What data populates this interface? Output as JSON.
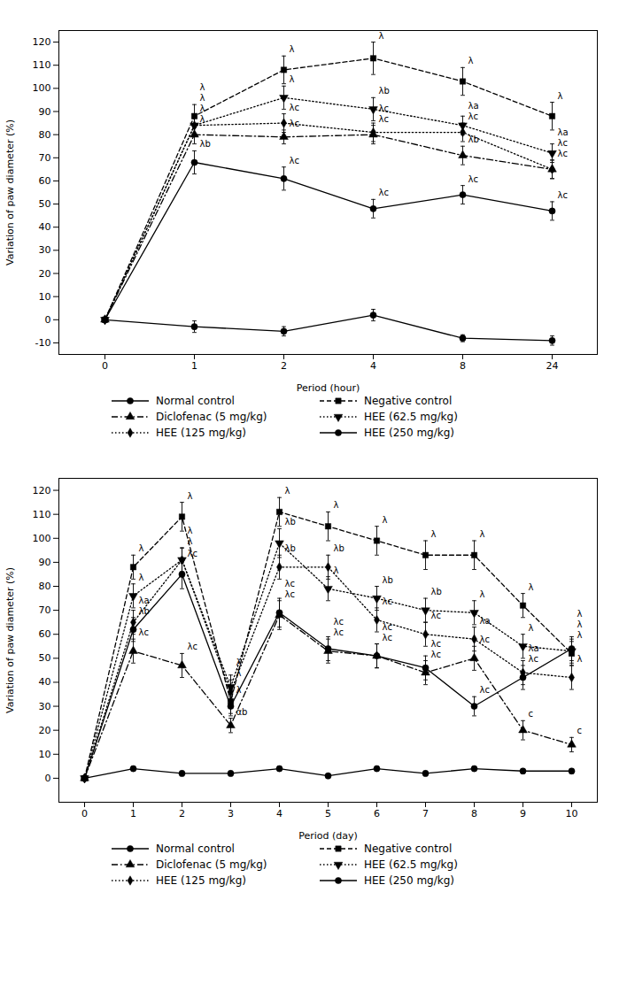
{
  "chart_data": [
    {
      "type": "line",
      "xlabel": "Period (hour)",
      "ylabel": "Variation of paw diameter (%)",
      "categories": [
        "0",
        "1",
        "2",
        "4",
        "8",
        "24"
      ],
      "ylim": [
        -15,
        125
      ],
      "yticks": [
        -10,
        0,
        10,
        20,
        30,
        40,
        50,
        60,
        70,
        80,
        90,
        100,
        110,
        120
      ],
      "grid": false,
      "legend": "bottom",
      "series": [
        {
          "name": "Normal control",
          "color": "black",
          "marker": "circle",
          "line_style": "solid",
          "values": [
            0,
            -3,
            -5,
            2,
            -8,
            -9
          ],
          "errors": [
            0.5,
            2.5,
            2,
            2.5,
            1.5,
            2
          ]
        },
        {
          "name": "Negative control",
          "color": "black",
          "marker": "square",
          "line_style": "dashed",
          "values": [
            0,
            88,
            108,
            113,
            103,
            88
          ],
          "errors": [
            0.5,
            5,
            6,
            7,
            6,
            6
          ]
        },
        {
          "name": "Diclofenac (5 mg/kg)",
          "color": "black",
          "marker": "triangle",
          "line_style": "dashdot",
          "values": [
            0,
            80,
            79,
            80,
            71,
            65
          ],
          "errors": [
            0.5,
            4,
            3,
            4,
            4,
            4
          ]
        },
        {
          "name": "HEE (62.5 mg/kg)",
          "color": "black",
          "marker": "triangle-down",
          "line_style": "dotted",
          "values": [
            0,
            84,
            96,
            91,
            84,
            72
          ],
          "errors": [
            0.5,
            4,
            5,
            5,
            4,
            4
          ]
        },
        {
          "name": "HEE (125 mg/kg)",
          "color": "black",
          "marker": "diamond",
          "line_style": "dotted",
          "values": [
            0,
            84,
            85,
            81,
            81,
            65
          ],
          "errors": [
            0.5,
            4,
            4,
            4,
            4,
            4
          ]
        },
        {
          "name": "HEE (250 mg/kg)",
          "color": "black",
          "marker": "circle",
          "line_style": "solid",
          "values": [
            0,
            68,
            61,
            48,
            54,
            47
          ],
          "errors": [
            0.5,
            5,
            5,
            4,
            4,
            4
          ]
        }
      ],
      "annotations": [
        {
          "text": "λ",
          "series": "Negative control",
          "x": "1"
        },
        {
          "text": "λ",
          "series": "Negative control",
          "x": "2"
        },
        {
          "text": "λ",
          "series": "Negative control",
          "x": "4"
        },
        {
          "text": "λ",
          "series": "Negative control",
          "x": "8"
        },
        {
          "text": "λ",
          "series": "Negative control",
          "x": "24"
        },
        {
          "text": "λ",
          "series": "Diclofenac (5 mg/kg)",
          "x": "1"
        },
        {
          "text": "λc",
          "series": "Diclofenac (5 mg/kg)",
          "x": "2"
        },
        {
          "text": "λc",
          "series": "Diclofenac (5 mg/kg)",
          "x": "4"
        },
        {
          "text": "λb",
          "series": "Diclofenac (5 mg/kg)",
          "x": "8"
        },
        {
          "text": "λc",
          "series": "Diclofenac (5 mg/kg)",
          "x": "24"
        },
        {
          "text": "λ",
          "series": "HEE (62.5 mg/kg)",
          "x": "1"
        },
        {
          "text": "λ",
          "series": "HEE (62.5 mg/kg)",
          "x": "2"
        },
        {
          "text": "λb",
          "series": "HEE (62.5 mg/kg)",
          "x": "4"
        },
        {
          "text": "λa",
          "series": "HEE (62.5 mg/kg)",
          "x": "8"
        },
        {
          "text": "λa",
          "series": "HEE (62.5 mg/kg)",
          "x": "24"
        },
        {
          "text": "λ",
          "series": "HEE (125 mg/kg)",
          "x": "1"
        },
        {
          "text": "λc",
          "series": "HEE (125 mg/kg)",
          "x": "2"
        },
        {
          "text": "λc",
          "series": "HEE (125 mg/kg)",
          "x": "4"
        },
        {
          "text": "λc",
          "series": "HEE (125 mg/kg)",
          "x": "8"
        },
        {
          "text": "λc",
          "series": "HEE (125 mg/kg)",
          "x": "24"
        },
        {
          "text": "λb",
          "series": "HEE (250 mg/kg)",
          "x": "1"
        },
        {
          "text": "λc",
          "series": "HEE (250 mg/kg)",
          "x": "2"
        },
        {
          "text": "λc",
          "series": "HEE (250 mg/kg)",
          "x": "4"
        },
        {
          "text": "λc",
          "series": "HEE (250 mg/kg)",
          "x": "8"
        },
        {
          "text": "λc",
          "series": "HEE (250 mg/kg)",
          "x": "24"
        }
      ]
    },
    {
      "type": "line",
      "xlabel": "Period (day)",
      "ylabel": "Variation of paw diameter (%)",
      "categories": [
        "0",
        "1",
        "2",
        "3",
        "4",
        "5",
        "6",
        "7",
        "8",
        "9",
        "10"
      ],
      "ylim": [
        -10,
        125
      ],
      "yticks": [
        0,
        10,
        20,
        30,
        40,
        50,
        60,
        70,
        80,
        90,
        100,
        110,
        120
      ],
      "grid": false,
      "legend": "bottom",
      "series": [
        {
          "name": "Normal control",
          "color": "black",
          "marker": "circle",
          "line_style": "solid",
          "values": [
            0,
            4,
            2,
            2,
            4,
            1,
            4,
            2,
            4,
            3,
            3
          ],
          "errors": [
            0.3,
            1,
            1,
            1,
            1,
            0.5,
            1,
            1,
            1,
            1,
            1
          ]
        },
        {
          "name": "Negative control",
          "color": "black",
          "marker": "square",
          "line_style": "dashed",
          "values": [
            0,
            88,
            109,
            32,
            111,
            105,
            99,
            93,
            93,
            72,
            52
          ],
          "errors": [
            0.3,
            5,
            6,
            5,
            6,
            6,
            6,
            6,
            6,
            5,
            5
          ]
        },
        {
          "name": "Diclofenac (5 mg/kg)",
          "color": "black",
          "marker": "triangle",
          "line_style": "dashdot",
          "values": [
            0,
            53,
            47,
            22,
            68,
            53,
            51,
            44,
            50,
            20,
            14
          ],
          "errors": [
            0.3,
            5,
            5,
            3,
            6,
            5,
            5,
            5,
            5,
            4,
            3
          ]
        },
        {
          "name": "HEE (62.5 mg/kg)",
          "color": "black",
          "marker": "triangle-down",
          "line_style": "dotted",
          "values": [
            0,
            76,
            91,
            38,
            98,
            79,
            75,
            70,
            69,
            55,
            53
          ],
          "errors": [
            0.3,
            5,
            5,
            5,
            6,
            5,
            5,
            5,
            5,
            5,
            5
          ]
        },
        {
          "name": "HEE (125 mg/kg)",
          "color": "black",
          "marker": "diamond",
          "line_style": "dotted",
          "values": [
            0,
            65,
            91,
            36,
            88,
            88,
            66,
            60,
            58,
            44,
            42
          ],
          "errors": [
            0.3,
            5,
            5,
            5,
            5,
            5,
            5,
            5,
            5,
            5,
            5
          ]
        },
        {
          "name": "HEE (250 mg/kg)",
          "color": "black",
          "marker": "circle",
          "line_style": "solid",
          "values": [
            0,
            62,
            85,
            30,
            69,
            54,
            51,
            46,
            30,
            42,
            54
          ],
          "errors": [
            0.3,
            5,
            6,
            4,
            6,
            5,
            5,
            5,
            4,
            5,
            5
          ]
        }
      ],
      "annotations": [
        {
          "text": "λ",
          "series": "Negative control",
          "x": "1"
        },
        {
          "text": "λ",
          "series": "Negative control",
          "x": "2"
        },
        {
          "text": "λ",
          "series": "Negative control",
          "x": "4"
        },
        {
          "text": "λ",
          "series": "Negative control",
          "x": "5"
        },
        {
          "text": "λ",
          "series": "Negative control",
          "x": "6"
        },
        {
          "text": "λ",
          "series": "Negative control",
          "x": "7"
        },
        {
          "text": "λ",
          "series": "Negative control",
          "x": "8"
        },
        {
          "text": "λ",
          "series": "Negative control",
          "x": "9"
        },
        {
          "text": "λ",
          "series": "Negative control",
          "x": "10"
        },
        {
          "text": "λc",
          "series": "Diclofenac (5 mg/kg)",
          "x": "1"
        },
        {
          "text": "λc",
          "series": "Diclofenac (5 mg/kg)",
          "x": "2"
        },
        {
          "text": "αb",
          "series": "Diclofenac (5 mg/kg)",
          "x": "3"
        },
        {
          "text": "λc",
          "series": "Diclofenac (5 mg/kg)",
          "x": "4"
        },
        {
          "text": "λc",
          "series": "Diclofenac (5 mg/kg)",
          "x": "5"
        },
        {
          "text": "λc",
          "series": "Diclofenac (5 mg/kg)",
          "x": "6"
        },
        {
          "text": "λc",
          "series": "Diclofenac (5 mg/kg)",
          "x": "7"
        },
        {
          "text": "λc",
          "series": "Diclofenac (5 mg/kg)",
          "x": "8"
        },
        {
          "text": "c",
          "series": "Diclofenac (5 mg/kg)",
          "x": "9"
        },
        {
          "text": "c",
          "series": "Diclofenac (5 mg/kg)",
          "x": "10"
        },
        {
          "text": "λ",
          "series": "HEE (62.5 mg/kg)",
          "x": "1"
        },
        {
          "text": "λ",
          "series": "HEE (62.5 mg/kg)",
          "x": "2"
        },
        {
          "text": "λ",
          "series": "HEE (62.5 mg/kg)",
          "x": "3"
        },
        {
          "text": "λb",
          "series": "HEE (62.5 mg/kg)",
          "x": "4"
        },
        {
          "text": "λ",
          "series": "HEE (62.5 mg/kg)",
          "x": "5"
        },
        {
          "text": "λb",
          "series": "HEE (62.5 mg/kg)",
          "x": "6"
        },
        {
          "text": "λb",
          "series": "HEE (62.5 mg/kg)",
          "x": "7"
        },
        {
          "text": "λ",
          "series": "HEE (62.5 mg/kg)",
          "x": "8"
        },
        {
          "text": "λ",
          "series": "HEE (62.5 mg/kg)",
          "x": "9"
        },
        {
          "text": "λ",
          "series": "HEE (62.5 mg/kg)",
          "x": "10"
        },
        {
          "text": "λa",
          "series": "HEE (125 mg/kg)",
          "x": "1"
        },
        {
          "text": "λ",
          "series": "HEE (125 mg/kg)",
          "x": "2"
        },
        {
          "text": "λ",
          "series": "HEE (125 mg/kg)",
          "x": "3"
        },
        {
          "text": "λb",
          "series": "HEE (125 mg/kg)",
          "x": "4"
        },
        {
          "text": "λb",
          "series": "HEE (125 mg/kg)",
          "x": "5"
        },
        {
          "text": "λc",
          "series": "HEE (125 mg/kg)",
          "x": "6"
        },
        {
          "text": "λc",
          "series": "HEE (125 mg/kg)",
          "x": "7"
        },
        {
          "text": "λa",
          "series": "HEE (125 mg/kg)",
          "x": "8"
        },
        {
          "text": "λa",
          "series": "HEE (125 mg/kg)",
          "x": "9"
        },
        {
          "text": "λ",
          "series": "HEE (125 mg/kg)",
          "x": "10"
        },
        {
          "text": "λb",
          "series": "HEE (250 mg/kg)",
          "x": "1"
        },
        {
          "text": "λc",
          "series": "HEE (250 mg/kg)",
          "x": "2"
        },
        {
          "text": "λ",
          "series": "HEE (250 mg/kg)",
          "x": "3"
        },
        {
          "text": "λc",
          "series": "HEE (250 mg/kg)",
          "x": "4"
        },
        {
          "text": "λc",
          "series": "HEE (250 mg/kg)",
          "x": "5"
        },
        {
          "text": "λc",
          "series": "HEE (250 mg/kg)",
          "x": "6"
        },
        {
          "text": "λc",
          "series": "HEE (250 mg/kg)",
          "x": "7"
        },
        {
          "text": "λc",
          "series": "HEE (250 mg/kg)",
          "x": "8"
        },
        {
          "text": "λc",
          "series": "HEE (250 mg/kg)",
          "x": "9"
        },
        {
          "text": "λ",
          "series": "HEE (250 mg/kg)",
          "x": "10"
        }
      ]
    }
  ]
}
